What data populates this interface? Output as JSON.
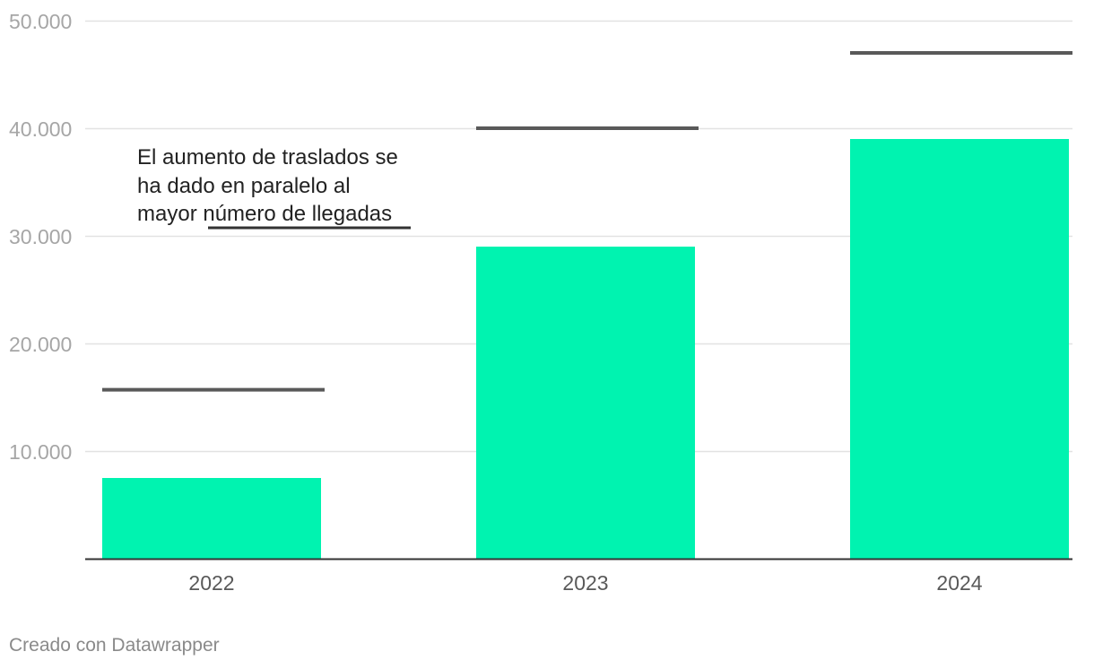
{
  "chart_data": {
    "type": "bar",
    "title": "",
    "xlabel": "",
    "ylabel": "",
    "categories": [
      "2022",
      "2023",
      "2024"
    ],
    "series": [
      {
        "type": "bar",
        "color": "#00f3b0",
        "values": [
          7500,
          29000,
          39000
        ]
      },
      {
        "type": "marker-line",
        "color": "#595959",
        "values": [
          15700,
          40000,
          47000
        ]
      }
    ],
    "ylim": [
      0,
      50000
    ],
    "yticks": [
      10000,
      20000,
      30000,
      40000,
      50000
    ],
    "ytick_labels": [
      "10.000",
      "20.000",
      "30.000",
      "40.000",
      "50.000"
    ],
    "grid": true,
    "annotation": {
      "lines": [
        "El aumento de traslados se",
        "ha dado en paralelo al",
        "mayor número de llegadas"
      ],
      "underlined": "número de llegadas"
    },
    "colors": {
      "bar": "#00f3b0",
      "marker": "#595959",
      "grid": "#e2e2e2",
      "axis": "#333333"
    }
  },
  "footer": "Creado con Datawrapper"
}
